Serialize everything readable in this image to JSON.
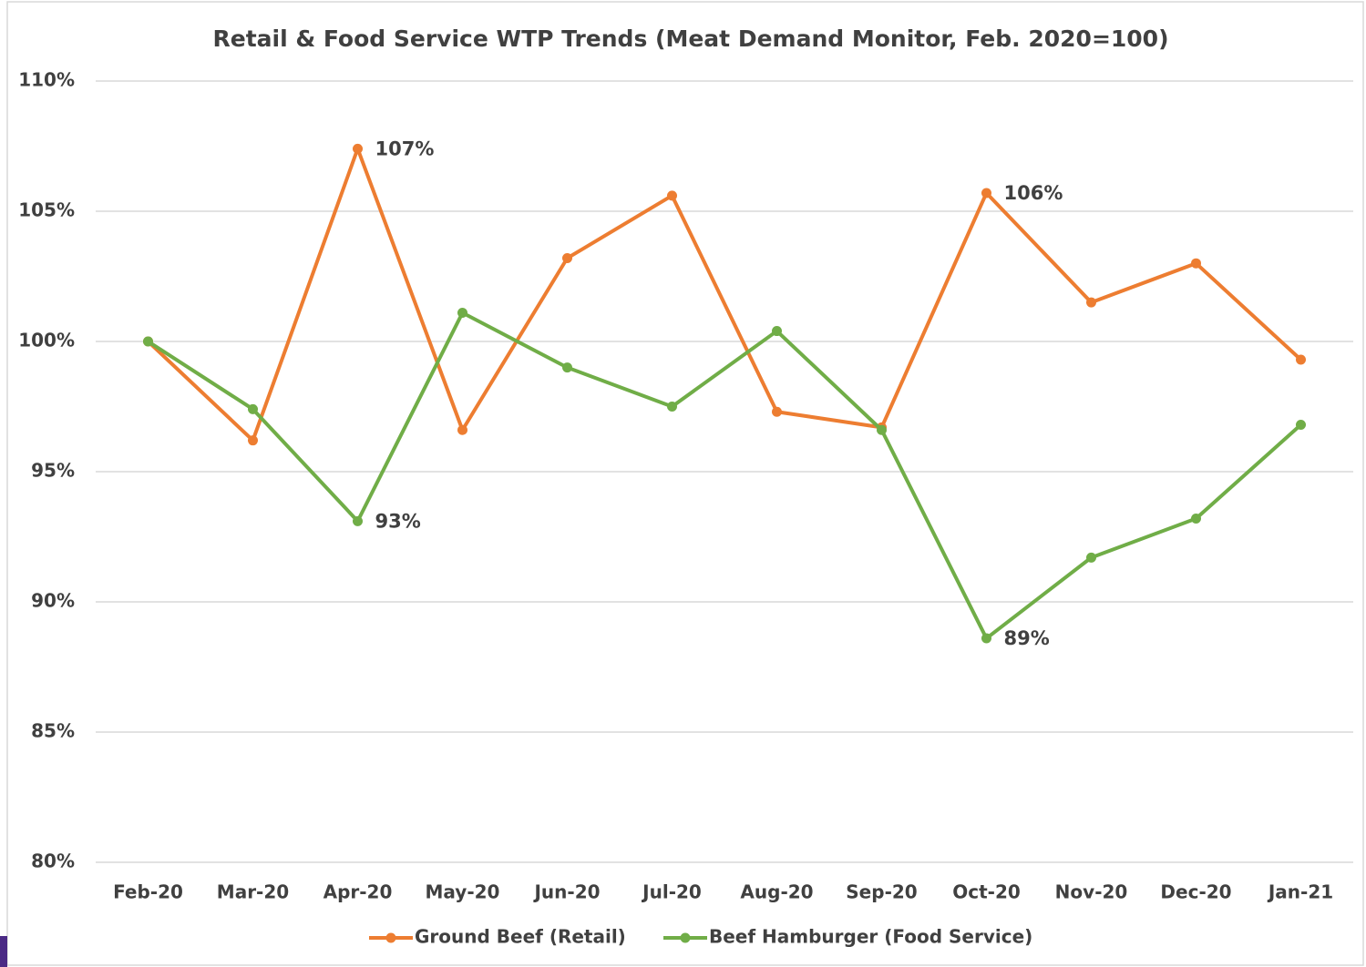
{
  "chart_data": {
    "type": "line",
    "title": "Retail & Food Service WTP Trends (Meat Demand Monitor, Feb. 2020=100)",
    "categories": [
      "Feb-20",
      "Mar-20",
      "Apr-20",
      "May-20",
      "Jun-20",
      "Jul-20",
      "Aug-20",
      "Sep-20",
      "Oct-20",
      "Nov-20",
      "Dec-20",
      "Jan-21"
    ],
    "series": [
      {
        "name": "Ground Beef (Retail)",
        "color": "#ed7d31",
        "values": [
          100,
          96.2,
          107.4,
          96.6,
          103.2,
          105.6,
          97.3,
          96.7,
          105.7,
          101.5,
          103.0,
          99.3
        ],
        "value_labels": [
          null,
          null,
          "107%",
          null,
          null,
          null,
          null,
          null,
          "106%",
          null,
          null,
          null
        ]
      },
      {
        "name": "Beef Hamburger (Food Service)",
        "color": "#70ad47",
        "values": [
          100,
          97.4,
          93.1,
          101.1,
          99.0,
          97.5,
          100.4,
          96.6,
          88.6,
          91.7,
          93.2,
          96.8
        ],
        "value_labels": [
          null,
          null,
          "93%",
          null,
          null,
          null,
          null,
          null,
          "89%",
          null,
          null,
          null
        ]
      }
    ],
    "ylim": [
      80,
      110
    ],
    "yticks": [
      {
        "value": 80,
        "label": "80%"
      },
      {
        "value": 85,
        "label": "85%"
      },
      {
        "value": 90,
        "label": "90%"
      },
      {
        "value": 95,
        "label": "95%"
      },
      {
        "value": 100,
        "label": "100%"
      },
      {
        "value": 105,
        "label": "105%"
      },
      {
        "value": 110,
        "label": "110%"
      }
    ],
    "grid": true,
    "legend": "bottom"
  }
}
